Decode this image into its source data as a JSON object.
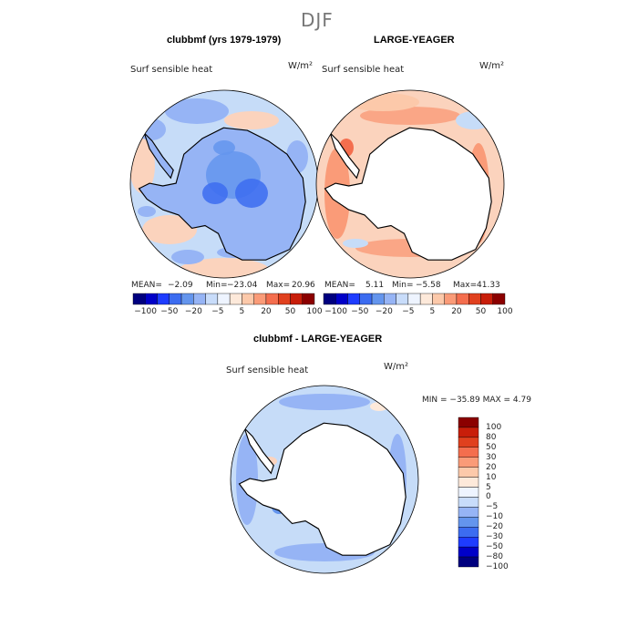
{
  "page_title": "DJF",
  "chart_data": [
    {
      "type": "polar-contour-map",
      "title": "clubbmf (yrs 1979-1979)",
      "variable": "Surf sensible heat",
      "units": "W/m²",
      "stats_labels": [
        "MEAN=",
        "Min=",
        "Max="
      ],
      "stats_values": [
        "−2.09",
        "−23.04",
        "20.96"
      ],
      "stats": {
        "mean": -2.09,
        "min": -23.04,
        "max": 20.96
      },
      "colorbar_levels": [
        -100,
        -80,
        -50,
        -30,
        -20,
        -10,
        -5,
        0,
        5,
        10,
        20,
        30,
        50,
        80,
        100
      ],
      "colorbar_tick_labels": [
        "−100",
        "−50",
        "−20",
        "−5",
        "5",
        "20",
        "50",
        "100"
      ],
      "field_summary": "mostly weak negative (blue) over Antarctica and surrounding ocean, weak positive near peninsula"
    },
    {
      "type": "polar-contour-map",
      "title": "LARGE-YEAGER",
      "variable": "Surf sensible heat",
      "units": "W/m²",
      "stats_labels": [
        "MEAN=",
        "Min=",
        "Max="
      ],
      "stats_values": [
        "5.11",
        "−5.58",
        "41.33"
      ],
      "stats": {
        "mean": 5.11,
        "min": -5.58,
        "max": 41.33
      },
      "colorbar_levels": [
        -100,
        -80,
        -50,
        -30,
        -20,
        -10,
        -5,
        0,
        5,
        10,
        20,
        30,
        50,
        80,
        100
      ],
      "colorbar_tick_labels": [
        "−100",
        "−50",
        "−20",
        "−5",
        "5",
        "20",
        "50",
        "100"
      ],
      "field_summary": "positive (orange/red) over Southern Ocean, no data over Antarctica"
    },
    {
      "type": "polar-contour-map",
      "title": "clubbmf - LARGE-YEAGER",
      "variable": "Surf sensible heat",
      "units": "W/m²",
      "stats_text": "MIN = −35.89 MAX =    4.79",
      "stats": {
        "min": -35.89,
        "max": 4.79
      },
      "colorbar_levels": [
        -100,
        -80,
        -50,
        -30,
        -20,
        -10,
        -5,
        0,
        5,
        10,
        20,
        30,
        50,
        80,
        100
      ],
      "colorbar_tick_labels": [
        "100",
        "80",
        "50",
        "30",
        "20",
        "10",
        "5",
        "0",
        "−5",
        "−10",
        "−20",
        "−30",
        "−50",
        "−80",
        "−100"
      ],
      "field_summary": "mostly negative (light blue) differences over Southern Ocean"
    }
  ],
  "colors": {
    "scale": [
      "#00007f",
      "#0000c8",
      "#1e3cff",
      "#3c6cf0",
      "#6495ed",
      "#96b4f5",
      "#c8dcfa",
      "#eef4ff",
      "#fde9da",
      "#fcc9aa",
      "#fa9b78",
      "#f46e4e",
      "#e0401e",
      "#c81e0a",
      "#8b0000"
    ],
    "map_base_neg": "#c6dcf8",
    "map_base_pos": "#fbd3bd",
    "coast": "#000000"
  }
}
